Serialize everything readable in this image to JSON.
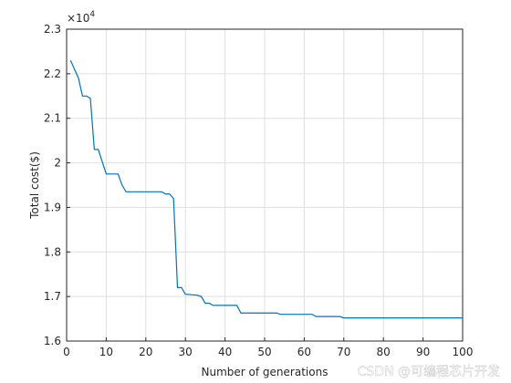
{
  "chart_data": {
    "type": "line",
    "x_label": "Number of generations",
    "y_label": "Total cost($)",
    "y_exponent": {
      "base": "×10",
      "power": "4"
    },
    "x": [
      1,
      2,
      3,
      4,
      5,
      6,
      7,
      8,
      10,
      13,
      14,
      15,
      24,
      25,
      26,
      27,
      28,
      29,
      30,
      33,
      34,
      35,
      36,
      37,
      43,
      44,
      53,
      54,
      62,
      63,
      69,
      70,
      100
    ],
    "values": [
      2.23,
      2.21,
      2.19,
      2.15,
      2.15,
      2.145,
      2.03,
      2.03,
      1.975,
      1.975,
      1.95,
      1.935,
      1.935,
      1.93,
      1.93,
      1.92,
      1.72,
      1.72,
      1.705,
      1.703,
      1.7,
      1.685,
      1.685,
      1.68,
      1.68,
      1.663,
      1.663,
      1.66,
      1.66,
      1.655,
      1.655,
      1.652,
      1.652
    ],
    "color": "#0072bd",
    "xlim": [
      0,
      100
    ],
    "xticks": [
      0,
      10,
      20,
      30,
      40,
      50,
      60,
      70,
      80,
      90,
      100
    ],
    "ylim": [
      1.6,
      2.3
    ],
    "yticks": [
      1.6,
      1.7,
      1.8,
      1.9,
      2,
      2.1,
      2.2,
      2.3
    ],
    "grid": true,
    "watermark": "CSDN @可编程芯片开发"
  }
}
